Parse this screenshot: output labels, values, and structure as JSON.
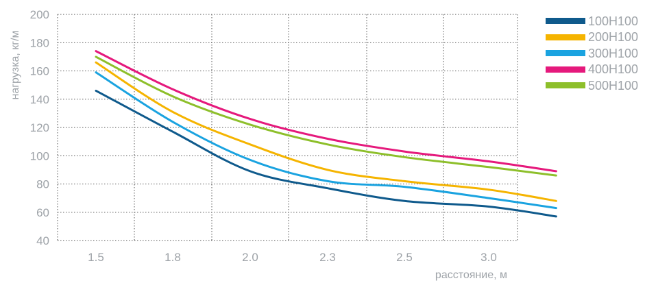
{
  "chart_data": {
    "type": "line",
    "xlabel": "расстояние, м",
    "ylabel": "нагрузка, кг/м",
    "x_ticks": [
      "1.5",
      "1.8",
      "2.0",
      "2.3",
      "2.5",
      "3.0"
    ],
    "y_ticks": [
      "40",
      "60",
      "80",
      "100",
      "120",
      "140",
      "160",
      "180",
      "200"
    ],
    "ylim": [
      40,
      200
    ],
    "grid": true,
    "legend_position": "right",
    "x": [
      1.5,
      1.75,
      2.0,
      2.25,
      2.5,
      2.75,
      2.95
    ],
    "series": [
      {
        "name": "100Н100",
        "color": "#0f5a8c",
        "values": [
          146,
          117,
          89,
          77,
          68,
          64,
          57
        ]
      },
      {
        "name": "200Н100",
        "color": "#f5b400",
        "values": [
          166,
          131,
          108,
          90,
          82,
          76,
          68
        ]
      },
      {
        "name": "300Н100",
        "color": "#1aa3e0",
        "values": [
          159,
          124,
          97,
          82,
          78,
          70,
          63
        ]
      },
      {
        "name": "400Н100",
        "color": "#e5197c",
        "values": [
          174,
          147,
          126,
          112,
          103,
          96,
          89
        ]
      },
      {
        "name": "500Н100",
        "color": "#8dbf2a",
        "values": [
          170,
          142,
          122,
          108,
          99,
          92,
          86
        ]
      }
    ]
  },
  "legend": {
    "items": [
      {
        "label": "100Н100",
        "color": "#0f5a8c"
      },
      {
        "label": "200Н100",
        "color": "#f5b400"
      },
      {
        "label": "300Н100",
        "color": "#1aa3e0"
      },
      {
        "label": "400Н100",
        "color": "#e5197c"
      },
      {
        "label": "500Н100",
        "color": "#8dbf2a"
      }
    ]
  }
}
